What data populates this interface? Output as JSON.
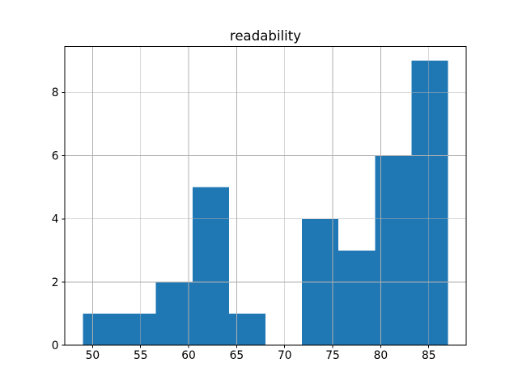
{
  "figure": {
    "background": "#ffffff"
  },
  "chart_data": {
    "type": "bar",
    "subtype": "histogram",
    "title": "readability",
    "xlabel": "",
    "ylabel": "",
    "bin_edges": [
      49.0,
      52.8,
      56.6,
      60.4,
      64.2,
      68.0,
      71.8,
      75.6,
      79.4,
      83.2,
      87.0
    ],
    "counts": [
      1,
      1,
      2,
      5,
      1,
      0,
      4,
      3,
      6,
      9
    ],
    "xticks": [
      50,
      55,
      60,
      65,
      70,
      75,
      80,
      85
    ],
    "yticks": [
      0,
      2,
      4,
      6,
      8
    ],
    "xlim": [
      47.1,
      88.9
    ],
    "ylim": [
      0,
      9.45
    ],
    "grid": true,
    "grid_above_bars": true,
    "legend": false,
    "bar_color": "#1f77b4",
    "grid_color": "#b0b0b0",
    "axis_color": "#000000",
    "text_color": "#000000"
  }
}
